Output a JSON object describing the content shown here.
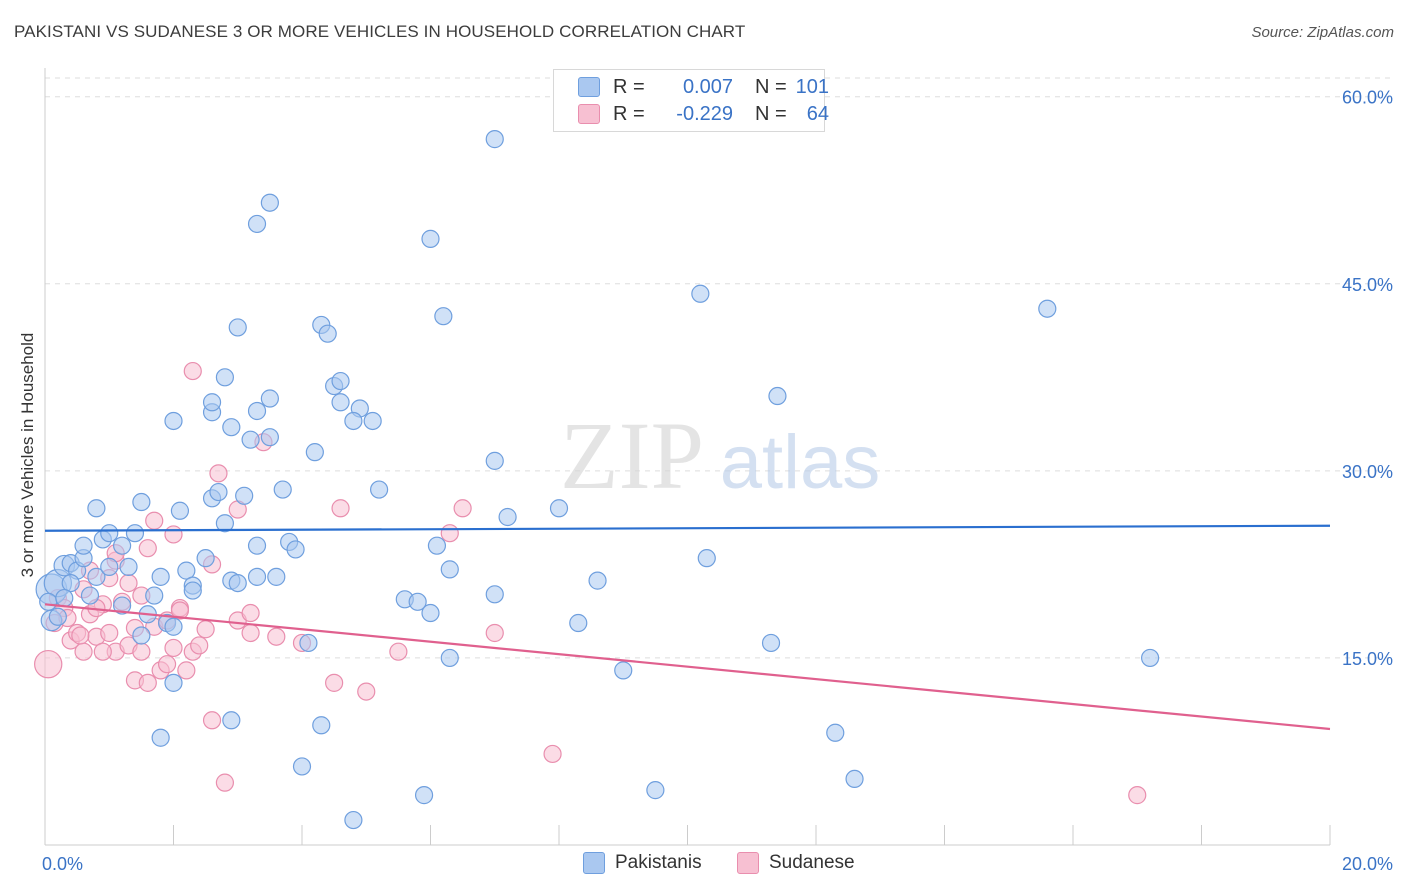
{
  "title": "PAKISTANI VS SUDANESE 3 OR MORE VEHICLES IN HOUSEHOLD CORRELATION CHART",
  "source": "Source: ZipAtlas.com",
  "watermark": {
    "zip": "ZIP",
    "atlas": "atlas"
  },
  "legend": {
    "r_label": "R =",
    "n_label": "N =",
    "rows": [
      {
        "r": "0.007",
        "n": "101",
        "fill": "#aac8f0",
        "stroke": "#6f9fde"
      },
      {
        "r": "-0.229",
        "n": "64",
        "fill": "#f7c0d2",
        "stroke": "#e98eae"
      }
    ]
  },
  "colors": {
    "pakistani_fill": "#aac8f0",
    "pakistani_stroke": "#6f9fde",
    "pakistani_line": "#2a6fcf",
    "sudanese_fill": "#f7c0d2",
    "sudanese_stroke": "#e98eae",
    "sudanese_line": "#e0608e",
    "tick_label": "#3a73c6",
    "grid": "#dddddd"
  },
  "chart_data": {
    "type": "scatter",
    "title": "PAKISTANI VS SUDANESE 3 OR MORE VEHICLES IN HOUSEHOLD CORRELATION CHART",
    "xlabel": "",
    "ylabel": "3 or more Vehicles in Household",
    "xlim": [
      0,
      20
    ],
    "ylim": [
      0,
      60
    ],
    "x_tick_labels": [
      {
        "value": 0,
        "label": "0.0%"
      },
      {
        "value": 20,
        "label": "20.0%"
      }
    ],
    "y_tick_labels": [
      {
        "value": 15,
        "label": "15.0%"
      },
      {
        "value": 30,
        "label": "30.0%"
      },
      {
        "value": 45,
        "label": "45.0%"
      },
      {
        "value": 60,
        "label": "60.0%"
      }
    ],
    "grid": true,
    "legend_position": "bottom-center",
    "series": [
      {
        "name": "Pakistanis",
        "r": 0.007,
        "n": 101,
        "trend": {
          "x": [
            0,
            20
          ],
          "y": [
            25.2,
            25.6
          ]
        },
        "points": [
          [
            0.1,
            20.5,
            1.8
          ],
          [
            0.2,
            21.0,
            1.6
          ],
          [
            0.3,
            22.4,
            1.2
          ],
          [
            0.4,
            22.6,
            1.0
          ],
          [
            0.1,
            18.0,
            1.2
          ],
          [
            0.05,
            19.5,
            1.0
          ],
          [
            0.5,
            22.0,
            1.0
          ],
          [
            0.6,
            23.0,
            1.0
          ],
          [
            0.8,
            21.5,
            1.0
          ],
          [
            0.7,
            20.0,
            1.0
          ],
          [
            0.9,
            24.5,
            1.0
          ],
          [
            1.0,
            25.0,
            1.0
          ],
          [
            0.8,
            27.0,
            1.0
          ],
          [
            1.2,
            24.0,
            1.0
          ],
          [
            1.4,
            25.0,
            1.0
          ],
          [
            1.5,
            27.5,
            1.0
          ],
          [
            1.7,
            20.0,
            1.0
          ],
          [
            1.6,
            18.5,
            1.0
          ],
          [
            1.8,
            21.5,
            1.0
          ],
          [
            1.9,
            17.8,
            1.0
          ],
          [
            2.0,
            13.0,
            1.0
          ],
          [
            1.8,
            8.6,
            1.0
          ],
          [
            2.2,
            22.0,
            1.0
          ],
          [
            2.3,
            20.8,
            1.0
          ],
          [
            2.5,
            23.0,
            1.0
          ],
          [
            2.1,
            26.8,
            1.0
          ],
          [
            2.6,
            27.8,
            1.0
          ],
          [
            2.7,
            28.3,
            1.0
          ],
          [
            2.8,
            25.8,
            1.0
          ],
          [
            2.9,
            21.2,
            1.0
          ],
          [
            3.0,
            21.0,
            1.0
          ],
          [
            3.1,
            28.0,
            1.0
          ],
          [
            3.3,
            24.0,
            1.0
          ],
          [
            3.3,
            21.5,
            1.0
          ],
          [
            3.6,
            21.5,
            1.0
          ],
          [
            3.8,
            24.3,
            1.0
          ],
          [
            3.9,
            23.7,
            1.0
          ],
          [
            3.7,
            28.5,
            1.0
          ],
          [
            3.2,
            32.5,
            1.0
          ],
          [
            3.5,
            32.7,
            1.0
          ],
          [
            2.9,
            33.5,
            1.0
          ],
          [
            2.6,
            34.7,
            1.0
          ],
          [
            2.6,
            35.5,
            1.0
          ],
          [
            2.8,
            37.5,
            1.0
          ],
          [
            3.3,
            34.8,
            1.0
          ],
          [
            3.5,
            35.8,
            1.0
          ],
          [
            3.0,
            41.5,
            1.0
          ],
          [
            2.0,
            34.0,
            1.0
          ],
          [
            3.3,
            49.8,
            1.0
          ],
          [
            3.5,
            51.5,
            1.0
          ],
          [
            4.3,
            41.7,
            1.0
          ],
          [
            4.4,
            41.0,
            1.0
          ],
          [
            4.5,
            36.8,
            1.0
          ],
          [
            4.6,
            37.2,
            1.0
          ],
          [
            4.6,
            35.5,
            1.0
          ],
          [
            4.2,
            31.5,
            1.0
          ],
          [
            4.9,
            35.0,
            1.0
          ],
          [
            4.8,
            34.0,
            1.0
          ],
          [
            5.1,
            34.0,
            1.0
          ],
          [
            5.2,
            28.5,
            1.0
          ],
          [
            5.6,
            19.7,
            1.0
          ],
          [
            5.8,
            19.5,
            1.0
          ],
          [
            6.0,
            18.6,
            1.0
          ],
          [
            6.1,
            24.0,
            1.0
          ],
          [
            6.3,
            22.1,
            1.0
          ],
          [
            6.3,
            15.0,
            1.0
          ],
          [
            7.2,
            26.3,
            1.0
          ],
          [
            7.0,
            20.1,
            1.0
          ],
          [
            6.2,
            42.4,
            1.0
          ],
          [
            6.0,
            48.6,
            1.0
          ],
          [
            7.0,
            56.6,
            1.0
          ],
          [
            7.0,
            30.8,
            1.0
          ],
          [
            8.0,
            27.0,
            1.0
          ],
          [
            8.3,
            17.8,
            1.0
          ],
          [
            8.6,
            21.2,
            1.0
          ],
          [
            9.0,
            14.0,
            1.0
          ],
          [
            9.5,
            4.4,
            1.0
          ],
          [
            10.2,
            44.2,
            1.0
          ],
          [
            10.3,
            23.0,
            1.0
          ],
          [
            11.4,
            36.0,
            1.0
          ],
          [
            11.3,
            16.2,
            1.0
          ],
          [
            12.3,
            9.0,
            1.0
          ],
          [
            12.6,
            5.3,
            1.0
          ],
          [
            15.6,
            43.0,
            1.0
          ],
          [
            17.2,
            15.0,
            1.0
          ],
          [
            4.1,
            16.2,
            1.0
          ],
          [
            4.0,
            6.3,
            1.0
          ],
          [
            4.8,
            2.0,
            1.0
          ],
          [
            5.9,
            4.0,
            1.0
          ],
          [
            4.3,
            9.6,
            1.0
          ],
          [
            2.9,
            10.0,
            1.0
          ],
          [
            1.0,
            22.3,
            1.0
          ],
          [
            0.6,
            24.0,
            1.0
          ],
          [
            1.3,
            22.3,
            1.0
          ],
          [
            1.2,
            19.2,
            1.0
          ],
          [
            0.4,
            21.0,
            1.0
          ],
          [
            0.3,
            19.8,
            1.0
          ],
          [
            0.2,
            18.3,
            1.0
          ],
          [
            2.3,
            20.4,
            1.0
          ],
          [
            1.5,
            16.8,
            1.0
          ],
          [
            2.0,
            17.5,
            1.0
          ]
        ]
      },
      {
        "name": "Sudanese",
        "r": -0.229,
        "n": 64,
        "trend": {
          "x": [
            0,
            20
          ],
          "y": [
            19.3,
            9.3
          ]
        },
        "points": [
          [
            0.05,
            14.5,
            1.6
          ],
          [
            0.15,
            17.8,
            1.0
          ],
          [
            0.2,
            19.8,
            1.0
          ],
          [
            0.3,
            19.0,
            1.0
          ],
          [
            0.4,
            16.4,
            1.0
          ],
          [
            0.5,
            17.0,
            1.0
          ],
          [
            0.6,
            15.5,
            1.0
          ],
          [
            0.7,
            18.5,
            1.0
          ],
          [
            0.6,
            20.5,
            1.0
          ],
          [
            0.8,
            16.7,
            1.0
          ],
          [
            0.9,
            19.3,
            1.0
          ],
          [
            1.0,
            17.0,
            1.0
          ],
          [
            1.1,
            15.5,
            1.0
          ],
          [
            1.0,
            21.4,
            1.0
          ],
          [
            1.2,
            19.5,
            1.0
          ],
          [
            1.1,
            22.8,
            1.0
          ],
          [
            1.3,
            21.0,
            1.0
          ],
          [
            1.3,
            16.0,
            1.0
          ],
          [
            1.4,
            17.4,
            1.0
          ],
          [
            1.5,
            15.5,
            1.0
          ],
          [
            1.4,
            13.2,
            1.0
          ],
          [
            1.6,
            13.0,
            1.0
          ],
          [
            1.7,
            17.5,
            1.0
          ],
          [
            1.8,
            14.0,
            1.0
          ],
          [
            1.9,
            14.5,
            1.0
          ],
          [
            2.0,
            15.8,
            1.0
          ],
          [
            1.9,
            18.0,
            1.0
          ],
          [
            2.1,
            19.0,
            1.0
          ],
          [
            2.2,
            14.0,
            1.0
          ],
          [
            2.3,
            15.5,
            1.0
          ],
          [
            2.4,
            16.0,
            1.0
          ],
          [
            2.5,
            17.3,
            1.0
          ],
          [
            2.6,
            22.5,
            1.0
          ],
          [
            2.7,
            29.8,
            1.0
          ],
          [
            2.3,
            38.0,
            1.0
          ],
          [
            3.0,
            26.9,
            1.0
          ],
          [
            3.0,
            18.0,
            1.0
          ],
          [
            3.2,
            18.6,
            1.0
          ],
          [
            3.2,
            17.0,
            1.0
          ],
          [
            3.4,
            32.3,
            1.0
          ],
          [
            3.6,
            16.7,
            1.0
          ],
          [
            4.0,
            16.2,
            1.0
          ],
          [
            4.6,
            27.0,
            1.0
          ],
          [
            4.5,
            13.0,
            1.0
          ],
          [
            5.0,
            12.3,
            1.0
          ],
          [
            5.5,
            15.5,
            1.0
          ],
          [
            6.3,
            25.0,
            1.0
          ],
          [
            6.5,
            27.0,
            1.0
          ],
          [
            7.0,
            17.0,
            1.0
          ],
          [
            7.9,
            7.3,
            1.0
          ],
          [
            2.6,
            10.0,
            1.0
          ],
          [
            2.8,
            5.0,
            1.0
          ],
          [
            17.0,
            4.0,
            1.0
          ],
          [
            1.7,
            26.0,
            1.0
          ],
          [
            1.6,
            23.8,
            1.0
          ],
          [
            2.0,
            24.9,
            1.0
          ],
          [
            1.1,
            23.4,
            1.0
          ],
          [
            2.1,
            18.8,
            1.0
          ],
          [
            0.9,
            15.5,
            1.0
          ],
          [
            0.35,
            18.2,
            1.0
          ],
          [
            0.8,
            19.0,
            1.0
          ],
          [
            1.5,
            20.0,
            1.0
          ],
          [
            0.7,
            22.0,
            1.0
          ],
          [
            0.55,
            16.8,
            1.0
          ]
        ]
      }
    ]
  }
}
